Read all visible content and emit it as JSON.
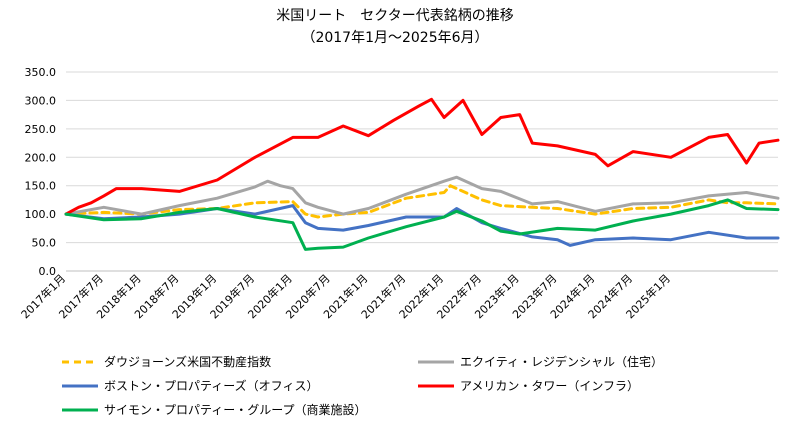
{
  "chart_data": {
    "type": "line",
    "title": "米国リート　セクター代表銘柄の推移",
    "subtitle": "（2017年1月～2025年6月）",
    "ylim": [
      0,
      350
    ],
    "yticks": [
      "0.0",
      "50.0",
      "100.0",
      "150.0",
      "200.0",
      "250.0",
      "300.0",
      "350.0"
    ],
    "xticks": [
      "2017年1月",
      "2017年7月",
      "2018年1月",
      "2018年7月",
      "2019年1月",
      "2019年7月",
      "2020年1月",
      "2020年7月",
      "2021年1月",
      "2021年7月",
      "2022年1月",
      "2022年7月",
      "2023年1月",
      "2023年7月",
      "2024年1月",
      "2024年7月",
      "2025年1月"
    ],
    "grid": true,
    "legend_position": "bottom",
    "series": [
      {
        "name": "ダウジョーンズ米国不動産指数",
        "color": "#FFC000",
        "dash": true,
        "points": [
          [
            0,
            100
          ],
          [
            6,
            103
          ],
          [
            12,
            100
          ],
          [
            18,
            108
          ],
          [
            24,
            110
          ],
          [
            30,
            120
          ],
          [
            36,
            122
          ],
          [
            38,
            100
          ],
          [
            40,
            95
          ],
          [
            44,
            100
          ],
          [
            48,
            103
          ],
          [
            54,
            128
          ],
          [
            60,
            138
          ],
          [
            61,
            150
          ],
          [
            66,
            125
          ],
          [
            69,
            115
          ],
          [
            74,
            112
          ],
          [
            78,
            110
          ],
          [
            84,
            100
          ],
          [
            90,
            110
          ],
          [
            96,
            112
          ],
          [
            102,
            125
          ],
          [
            105,
            120
          ],
          [
            108,
            120
          ],
          [
            113,
            118
          ]
        ]
      },
      {
        "name": "エクイティ・レジデンシャル（住宅）",
        "color": "#A5A5A5",
        "dash": false,
        "points": [
          [
            0,
            100
          ],
          [
            6,
            112
          ],
          [
            12,
            100
          ],
          [
            18,
            115
          ],
          [
            24,
            128
          ],
          [
            30,
            148
          ],
          [
            32,
            158
          ],
          [
            34,
            150
          ],
          [
            36,
            145
          ],
          [
            38,
            120
          ],
          [
            40,
            112
          ],
          [
            44,
            100
          ],
          [
            48,
            110
          ],
          [
            54,
            135
          ],
          [
            60,
            158
          ],
          [
            62,
            165
          ],
          [
            66,
            145
          ],
          [
            69,
            140
          ],
          [
            74,
            118
          ],
          [
            78,
            122
          ],
          [
            84,
            105
          ],
          [
            90,
            118
          ],
          [
            96,
            120
          ],
          [
            102,
            132
          ],
          [
            108,
            138
          ],
          [
            113,
            128
          ]
        ]
      },
      {
        "name": "ボストン・プロパティーズ（オフィス）",
        "color": "#4472C4",
        "dash": false,
        "points": [
          [
            0,
            100
          ],
          [
            6,
            92
          ],
          [
            12,
            95
          ],
          [
            18,
            100
          ],
          [
            24,
            110
          ],
          [
            30,
            100
          ],
          [
            36,
            115
          ],
          [
            38,
            85
          ],
          [
            40,
            75
          ],
          [
            44,
            72
          ],
          [
            48,
            80
          ],
          [
            54,
            95
          ],
          [
            60,
            95
          ],
          [
            62,
            110
          ],
          [
            66,
            85
          ],
          [
            69,
            75
          ],
          [
            74,
            60
          ],
          [
            78,
            55
          ],
          [
            80,
            45
          ],
          [
            84,
            55
          ],
          [
            90,
            58
          ],
          [
            96,
            55
          ],
          [
            102,
            68
          ],
          [
            108,
            58
          ],
          [
            113,
            58
          ]
        ]
      },
      {
        "name": "アメリカン・タワー（インフラ）",
        "color": "#FF0000",
        "dash": false,
        "points": [
          [
            0,
            100
          ],
          [
            2,
            112
          ],
          [
            4,
            120
          ],
          [
            6,
            132
          ],
          [
            8,
            145
          ],
          [
            12,
            145
          ],
          [
            18,
            140
          ],
          [
            24,
            160
          ],
          [
            30,
            200
          ],
          [
            36,
            235
          ],
          [
            40,
            235
          ],
          [
            44,
            255
          ],
          [
            48,
            238
          ],
          [
            52,
            265
          ],
          [
            56,
            290
          ],
          [
            58,
            302
          ],
          [
            60,
            270
          ],
          [
            63,
            300
          ],
          [
            66,
            240
          ],
          [
            69,
            270
          ],
          [
            72,
            275
          ],
          [
            74,
            225
          ],
          [
            78,
            220
          ],
          [
            84,
            205
          ],
          [
            86,
            185
          ],
          [
            90,
            210
          ],
          [
            96,
            200
          ],
          [
            102,
            235
          ],
          [
            105,
            240
          ],
          [
            108,
            190
          ],
          [
            110,
            225
          ],
          [
            113,
            230
          ]
        ]
      },
      {
        "name": "サイモン・プロパティー・グループ（商業施設）",
        "color": "#00B050",
        "dash": false,
        "points": [
          [
            0,
            100
          ],
          [
            6,
            90
          ],
          [
            12,
            92
          ],
          [
            18,
            103
          ],
          [
            24,
            110
          ],
          [
            30,
            95
          ],
          [
            36,
            85
          ],
          [
            38,
            38
          ],
          [
            40,
            40
          ],
          [
            44,
            42
          ],
          [
            48,
            58
          ],
          [
            54,
            78
          ],
          [
            60,
            95
          ],
          [
            62,
            105
          ],
          [
            66,
            88
          ],
          [
            69,
            70
          ],
          [
            72,
            65
          ],
          [
            78,
            75
          ],
          [
            84,
            72
          ],
          [
            90,
            88
          ],
          [
            96,
            100
          ],
          [
            102,
            115
          ],
          [
            105,
            125
          ],
          [
            108,
            110
          ],
          [
            113,
            108
          ]
        ]
      }
    ]
  }
}
